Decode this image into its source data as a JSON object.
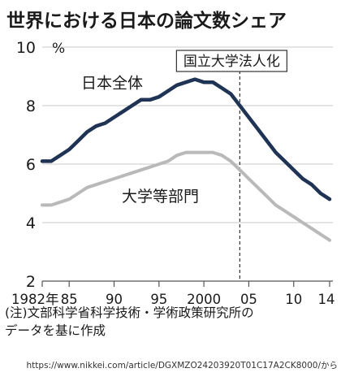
{
  "chart_data": {
    "type": "line",
    "title": "世界における日本の論文数シェア",
    "ylabel": "%",
    "ylim": [
      2,
      10
    ],
    "yticks": [
      2,
      4,
      6,
      8,
      10
    ],
    "xlim": [
      1982,
      2014
    ],
    "xtick_values": [
      1982,
      1985,
      1990,
      1995,
      2000,
      2005,
      2010,
      2014
    ],
    "xtick_labels": [
      "1982年",
      "85",
      "90",
      "95",
      "2000",
      "05",
      "10",
      "14"
    ],
    "x": [
      1982,
      1983,
      1984,
      1985,
      1986,
      1987,
      1988,
      1989,
      1990,
      1991,
      1992,
      1993,
      1994,
      1995,
      1996,
      1997,
      1998,
      1999,
      2000,
      2001,
      2002,
      2003,
      2004,
      2005,
      2006,
      2007,
      2008,
      2009,
      2010,
      2011,
      2012,
      2013,
      2014
    ],
    "series": [
      {
        "name": "日本全体",
        "color": "#1f3354",
        "values": [
          6.1,
          6.1,
          6.3,
          6.5,
          6.8,
          7.1,
          7.3,
          7.4,
          7.6,
          7.8,
          8.0,
          8.2,
          8.2,
          8.3,
          8.5,
          8.7,
          8.8,
          8.9,
          8.8,
          8.8,
          8.6,
          8.4,
          8.0,
          7.6,
          7.2,
          6.8,
          6.4,
          6.1,
          5.8,
          5.5,
          5.3,
          5.0,
          4.8
        ]
      },
      {
        "name": "大学等部門",
        "color": "#b9b9b9",
        "values": [
          4.6,
          4.6,
          4.7,
          4.8,
          5.0,
          5.2,
          5.3,
          5.4,
          5.5,
          5.6,
          5.7,
          5.8,
          5.9,
          6.0,
          6.1,
          6.3,
          6.4,
          6.4,
          6.4,
          6.4,
          6.3,
          6.1,
          5.8,
          5.5,
          5.2,
          4.9,
          4.6,
          4.4,
          4.2,
          4.0,
          3.8,
          3.6,
          3.4
        ]
      }
    ],
    "annotation": {
      "label": "国立大学法人化",
      "x": 2004
    }
  },
  "note": "(注)文部科学省科学技術・学術政策研究所の\nデータを基に作成",
  "source": "https://www.nikkei.com/article/DGXMZO24203920T01C17A2CK8000/から"
}
